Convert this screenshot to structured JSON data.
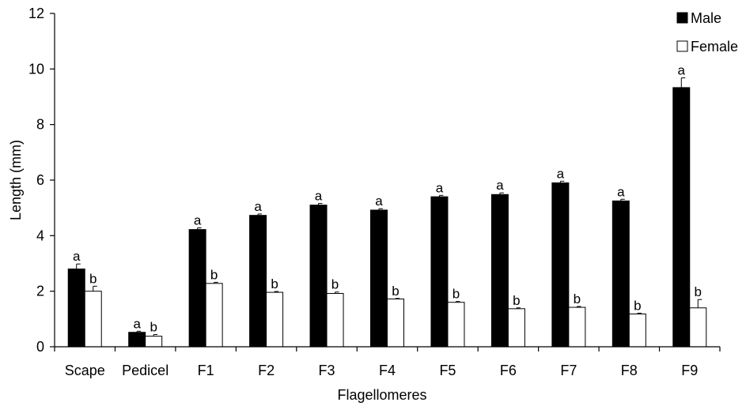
{
  "chart_data": {
    "type": "bar",
    "title": "",
    "xlabel": "Flagellomeres",
    "ylabel": "Length (mm)",
    "ylim": [
      0,
      12
    ],
    "yticks": [
      "0",
      "2",
      "4",
      "6",
      "8",
      "10",
      "12"
    ],
    "categories": [
      "Scape",
      "Pedicel",
      "F1",
      "F2",
      "F3",
      "F4",
      "F5",
      "F6",
      "F7",
      "F8",
      "F9"
    ],
    "legend_position": "top-right",
    "series": [
      {
        "name": "Male",
        "color": "#000000",
        "values": [
          2.8,
          0.52,
          4.22,
          4.73,
          5.1,
          4.92,
          5.4,
          5.48,
          5.9,
          5.25,
          9.33
        ],
        "errors": [
          0.18,
          0.04,
          0.06,
          0.05,
          0.06,
          0.05,
          0.05,
          0.06,
          0.06,
          0.06,
          0.35
        ],
        "labels": [
          "a",
          "a",
          "a",
          "a",
          "a",
          "a",
          "a",
          "a",
          "a",
          "a",
          "a"
        ]
      },
      {
        "name": "Female",
        "color": "#ffffff",
        "values": [
          2.0,
          0.38,
          2.28,
          1.96,
          1.92,
          1.72,
          1.6,
          1.37,
          1.42,
          1.18,
          1.4
        ],
        "errors": [
          0.18,
          0.06,
          0.04,
          0.03,
          0.05,
          0.02,
          0.03,
          0.03,
          0.03,
          0.03,
          0.3
        ],
        "labels": [
          "b",
          "b",
          "b",
          "b",
          "b",
          "b",
          "b",
          "b",
          "b",
          "b",
          "b"
        ]
      }
    ]
  }
}
